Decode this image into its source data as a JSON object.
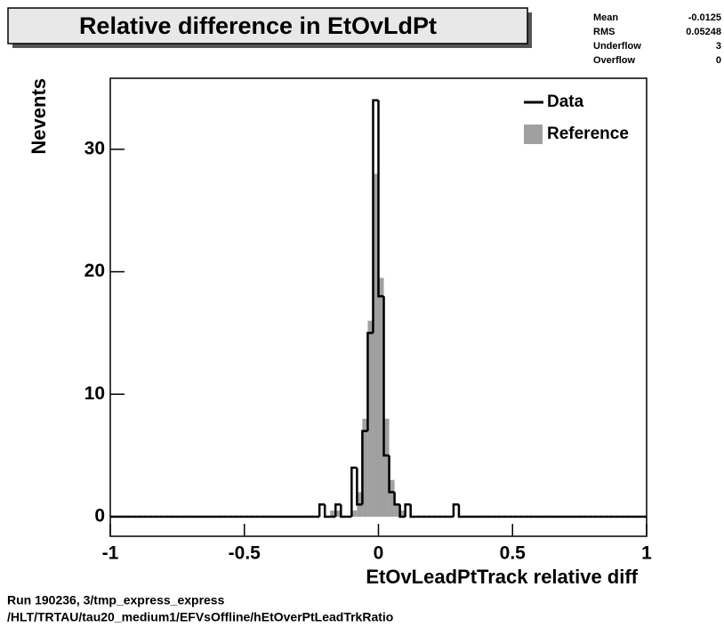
{
  "chart_data": {
    "type": "histogram",
    "title": "Relative difference in EtOvLdPt",
    "x_label": "EtOvLeadPtTrack  relative diff",
    "y_label": "Nevents",
    "xlim": [
      -1,
      1
    ],
    "ylim": [
      -1.6,
      35.8
    ],
    "xticks": [
      -1,
      -0.5,
      0,
      0.5,
      1
    ],
    "yticks": [
      0,
      10,
      20,
      30
    ],
    "bins": [
      -1,
      -0.98,
      -0.96,
      -0.94,
      -0.92,
      -0.9,
      -0.88,
      -0.86,
      -0.84,
      -0.82,
      -0.8,
      -0.78,
      -0.76,
      -0.74,
      -0.72,
      -0.7,
      -0.68,
      -0.66,
      -0.64,
      -0.62,
      -0.6,
      -0.58,
      -0.56,
      -0.54,
      -0.52,
      -0.5,
      -0.48,
      -0.46,
      -0.44,
      -0.42,
      -0.4,
      -0.38,
      -0.36,
      -0.34,
      -0.32,
      -0.3,
      -0.28,
      -0.26,
      -0.24,
      -0.22,
      -0.2,
      -0.18,
      -0.16,
      -0.14,
      -0.12,
      -0.1,
      -0.08,
      -0.06,
      -0.04,
      -0.02,
      0,
      0.02,
      0.04,
      0.06,
      0.08,
      0.1,
      0.12,
      0.14,
      0.16,
      0.18,
      0.2,
      0.22,
      0.24,
      0.26,
      0.28,
      0.3,
      0.32,
      0.34,
      0.36,
      0.38,
      0.4,
      0.42,
      0.44,
      0.46,
      0.48,
      0.5,
      0.52,
      0.54,
      0.56,
      0.58,
      0.6,
      0.62,
      0.64,
      0.66,
      0.68,
      0.7,
      0.72,
      0.74,
      0.76,
      0.78,
      0.8,
      0.82,
      0.84,
      0.86,
      0.88,
      0.9,
      0.92,
      0.94,
      0.96,
      0.98,
      1
    ],
    "series": [
      {
        "name": "Reference",
        "color": "#a0a0a0",
        "style": "filled",
        "values": [
          0,
          0,
          0,
          0,
          0,
          0,
          0,
          0,
          0,
          0,
          0,
          0,
          0,
          0,
          0,
          0,
          0,
          0,
          0,
          0,
          0,
          0,
          0,
          0,
          0,
          0,
          0,
          0,
          0,
          0,
          0,
          0,
          0,
          0,
          0,
          0,
          0,
          0,
          0,
          0,
          0,
          0.5,
          0.5,
          0,
          0,
          0.5,
          2,
          8,
          16,
          28,
          19.5,
          8,
          3,
          1,
          0.5,
          0,
          0,
          0,
          0,
          0,
          0,
          0,
          0,
          0,
          0,
          0,
          0,
          0,
          0,
          0,
          0,
          0,
          0,
          0,
          0,
          0,
          0,
          0,
          0,
          0,
          0,
          0,
          0,
          0,
          0,
          0,
          0,
          0,
          0,
          0,
          0,
          0,
          0,
          0,
          0,
          0,
          0,
          0,
          0,
          0
        ]
      },
      {
        "name": "Data",
        "color": "#000000",
        "style": "step",
        "values": [
          0,
          0,
          0,
          0,
          0,
          0,
          0,
          0,
          0,
          0,
          0,
          0,
          0,
          0,
          0,
          0,
          0,
          0,
          0,
          0,
          0,
          0,
          0,
          0,
          0,
          0,
          0,
          0,
          0,
          0,
          0,
          0,
          0,
          0,
          0,
          0,
          0,
          0,
          0,
          1,
          0,
          0,
          1,
          0,
          0,
          4,
          1,
          7,
          15,
          34,
          18,
          5,
          2,
          1,
          0,
          1,
          0,
          0,
          0,
          0,
          0,
          0,
          0,
          0,
          1,
          0,
          0,
          0,
          0,
          0,
          0,
          0,
          0,
          0,
          0,
          0,
          0,
          0,
          0,
          0,
          0,
          0,
          0,
          0,
          0,
          0,
          0,
          0,
          0,
          0,
          0,
          0,
          0,
          0,
          0,
          0,
          0,
          0,
          0,
          0
        ]
      }
    ],
    "legend_order": [
      1,
      0
    ],
    "stats": [
      {
        "label": "Mean",
        "value": -0.0125
      },
      {
        "label": "RMS",
        "value": 0.05248
      },
      {
        "label": "Underflow",
        "value": 3
      },
      {
        "label": "Overflow",
        "value": 0
      }
    ],
    "footer": [
      "Run 190236, 3/tmp_express_express",
      "/HLT/TRTAU/tau20_medium1/EFVsOffline/hEtOverPtLeadTrkRatio"
    ]
  }
}
